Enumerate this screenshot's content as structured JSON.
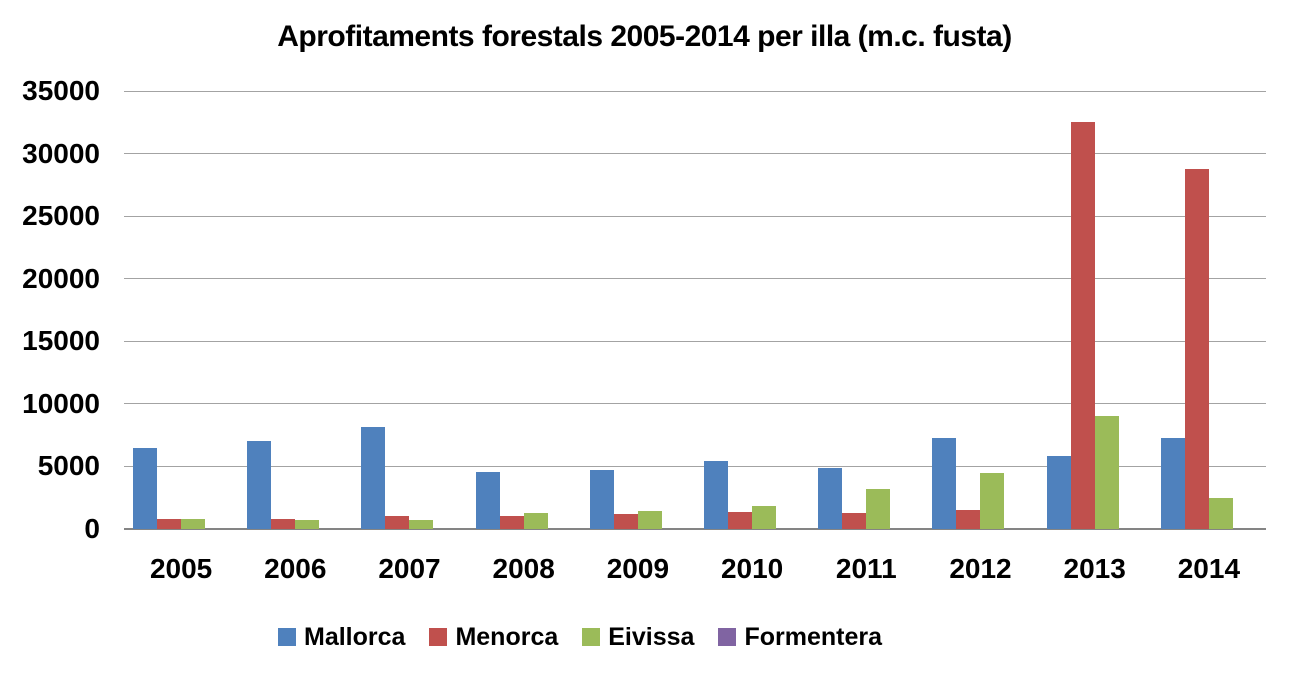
{
  "title": "Aprofitaments forestals 2005-2014 per illa (m.c. fusta)",
  "chart_data": {
    "type": "bar",
    "title": "Aprofitaments forestals 2005-2014 per illa (m.c. fusta)",
    "categories": [
      "2005",
      "2006",
      "2007",
      "2008",
      "2009",
      "2010",
      "2011",
      "2012",
      "2013",
      "2014"
    ],
    "series": [
      {
        "name": "Mallorca",
        "color": "#4F81BD",
        "values": [
          6500,
          7050,
          8150,
          4550,
          4750,
          5450,
          4850,
          7300,
          5800,
          7250
        ]
      },
      {
        "name": "Menorca",
        "color": "#C0504D",
        "values": [
          800,
          800,
          1000,
          1050,
          1200,
          1350,
          1250,
          1550,
          32500,
          28800
        ]
      },
      {
        "name": "Eivissa",
        "color": "#9BBB59",
        "values": [
          800,
          750,
          750,
          1250,
          1450,
          1800,
          3200,
          4500,
          9000,
          2500
        ]
      },
      {
        "name": "Formentera",
        "color": "#8064A2",
        "values": [
          0,
          0,
          0,
          0,
          0,
          0,
          0,
          0,
          0,
          0
        ]
      }
    ],
    "xlabel": "",
    "ylabel": "",
    "ylim": [
      0,
      35000
    ],
    "y_ticks": [
      0,
      5000,
      10000,
      15000,
      20000,
      25000,
      30000,
      35000
    ],
    "grid": true,
    "legend_position": "bottom"
  }
}
